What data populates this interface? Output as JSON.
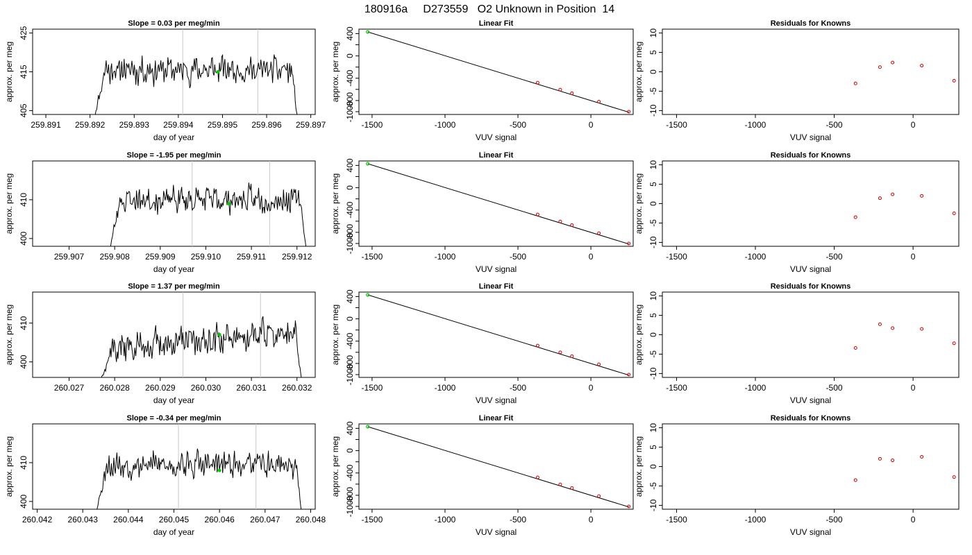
{
  "figure": {
    "title": "180916a     D273559   O2 Unknown in Position  14"
  },
  "colors": {
    "series_line": "#000000",
    "highlight_point": "#00cc00",
    "known_points": "#cc0000",
    "guide_lines": "#c8c8c8",
    "frame": "#000000"
  },
  "chart_data": [
    {
      "type": "line",
      "row": 0,
      "panel": "time_series",
      "title": "Slope =  0.03  per meg/min",
      "xlabel": "day of year",
      "ylabel": "approx. per meg",
      "xlim": [
        259.8907,
        259.8971
      ],
      "ylim": [
        404,
        426
      ],
      "xticks": [
        259.891,
        259.892,
        259.893,
        259.894,
        259.895,
        259.896,
        259.897
      ],
      "xtick_labels": [
        "259.891",
        "259.892",
        "259.893",
        "259.894",
        "259.895",
        "259.896",
        "259.897"
      ],
      "yticks": [
        405,
        415,
        425
      ],
      "ytick_labels": [
        "405",
        "415",
        "425"
      ],
      "vlines": [
        259.8941,
        259.8958
      ],
      "highlight_point": [
        259.8949,
        415
      ],
      "series": [
        {
          "x_start": 259.8921,
          "x_end": 259.8967,
          "baseline": 415.5,
          "amplitude": 1.4,
          "drift": 0.0,
          "tail_level": 403.0,
          "seed": 11
        }
      ]
    },
    {
      "type": "scatter",
      "row": 0,
      "panel": "linear_fit",
      "title": "Linear Fit",
      "xlabel": "VUV signal",
      "ylabel": "approx. per meg",
      "xlim": [
        -1590,
        290
      ],
      "ylim": [
        -1050,
        480
      ],
      "xticks": [
        -1500,
        -1000,
        -500,
        0
      ],
      "xtick_labels": [
        "-1500",
        "-1000",
        "-500",
        "0"
      ],
      "yticks": [
        400,
        200,
        0,
        -200,
        -400,
        -600,
        -800,
        -1000
      ],
      "ytick_labels": [
        "400",
        "",
        "0",
        "",
        "-400",
        "",
        "-800",
        "-1000"
      ],
      "fit_line": {
        "x": [
          -1530,
          260
        ],
        "y": [
          430,
          -1010
        ]
      },
      "known_points": {
        "x": [
          -365,
          -210,
          -130,
          55,
          260
        ],
        "y": [
          -480,
          -605,
          -670,
          -820,
          -1000
        ]
      },
      "highlight_point": [
        -1530,
        430
      ]
    },
    {
      "type": "scatter",
      "row": 0,
      "panel": "residuals",
      "title": "Residuals for Knowns",
      "xlabel": "VUV signal",
      "ylabel": "approx. per meg",
      "xlim": [
        -1590,
        290
      ],
      "ylim": [
        -11,
        11
      ],
      "xticks": [
        -1500,
        -1000,
        -500,
        0
      ],
      "xtick_labels": [
        "-1500",
        "-1000",
        "-500",
        "0"
      ],
      "yticks": [
        10,
        5,
        0,
        -5,
        -10
      ],
      "ytick_labels": [
        "10",
        "5",
        "0",
        "-5",
        "-10"
      ],
      "points": {
        "x": [
          -365,
          -210,
          -130,
          55,
          260
        ],
        "y": [
          -3.0,
          1.2,
          2.4,
          1.6,
          -2.3
        ]
      }
    },
    {
      "type": "line",
      "row": 1,
      "panel": "time_series",
      "title": "Slope =  -1.95  per meg/min",
      "xlabel": "day of year",
      "ylabel": "approx. per meg",
      "xlim": [
        259.9062,
        259.9124
      ],
      "ylim": [
        398,
        420
      ],
      "xticks": [
        259.907,
        259.908,
        259.909,
        259.91,
        259.911,
        259.912
      ],
      "xtick_labels": [
        "259.907",
        "259.908",
        "259.909",
        "259.910",
        "259.911",
        "259.912"
      ],
      "yticks": [
        400,
        410
      ],
      "ytick_labels": [
        "400",
        "410"
      ],
      "vlines": [
        259.9097,
        259.9114
      ],
      "highlight_point": [
        259.9105,
        409
      ],
      "series": [
        {
          "x_start": 259.9079,
          "x_end": 259.9122,
          "baseline": 410.0,
          "amplitude": 1.4,
          "drift": 0.0,
          "tail_level": 397.5,
          "seed": 23
        }
      ]
    },
    {
      "type": "scatter",
      "row": 1,
      "panel": "linear_fit",
      "title": "Linear Fit",
      "xlabel": "VUV signal",
      "ylabel": "approx. per meg",
      "xlim": [
        -1590,
        290
      ],
      "ylim": [
        -1050,
        480
      ],
      "xticks": [
        -1500,
        -1000,
        -500,
        0
      ],
      "xtick_labels": [
        "-1500",
        "-1000",
        "-500",
        "0"
      ],
      "yticks": [
        400,
        200,
        0,
        -200,
        -400,
        -600,
        -800,
        -1000
      ],
      "ytick_labels": [
        "400",
        "",
        "0",
        "",
        "-400",
        "",
        "-800",
        "-1000"
      ],
      "fit_line": {
        "x": [
          -1530,
          260
        ],
        "y": [
          430,
          -1010
        ]
      },
      "known_points": {
        "x": [
          -365,
          -210,
          -130,
          55,
          260
        ],
        "y": [
          -480,
          -605,
          -670,
          -815,
          -1000
        ]
      },
      "highlight_point": [
        -1530,
        430
      ]
    },
    {
      "type": "scatter",
      "row": 1,
      "panel": "residuals",
      "title": "Residuals for Knowns",
      "xlabel": "VUV signal",
      "ylabel": "approx. per meg",
      "xlim": [
        -1590,
        290
      ],
      "ylim": [
        -11,
        11
      ],
      "xticks": [
        -1500,
        -1000,
        -500,
        0
      ],
      "xtick_labels": [
        "-1500",
        "-1000",
        "-500",
        "0"
      ],
      "yticks": [
        10,
        5,
        0,
        -5,
        -10
      ],
      "ytick_labels": [
        "10",
        "5",
        "0",
        "-5",
        "-10"
      ],
      "points": {
        "x": [
          -365,
          -210,
          -130,
          55,
          260
        ],
        "y": [
          -3.5,
          1.4,
          2.4,
          2.0,
          -2.5
        ]
      }
    },
    {
      "type": "line",
      "row": 2,
      "panel": "time_series",
      "title": "Slope =  1.37  per meg/min",
      "xlabel": "day of year",
      "ylabel": "approx. per meg",
      "xlim": [
        260.0262,
        260.0324
      ],
      "ylim": [
        396,
        418
      ],
      "xticks": [
        260.027,
        260.028,
        260.029,
        260.03,
        260.031,
        260.032
      ],
      "xtick_labels": [
        "260.027",
        "260.028",
        "260.029",
        "260.030",
        "260.031",
        "260.032"
      ],
      "yticks": [
        400,
        410
      ],
      "ytick_labels": [
        "400",
        "410"
      ],
      "vlines": [
        260.0295,
        260.0312
      ],
      "highlight_point": [
        260.0303,
        407
      ],
      "series": [
        {
          "x_start": 260.0277,
          "x_end": 260.0321,
          "baseline": 405.5,
          "amplitude": 1.6,
          "drift": 4.5,
          "tail_level": 395.5,
          "seed": 37
        }
      ]
    },
    {
      "type": "scatter",
      "row": 2,
      "panel": "linear_fit",
      "title": "Linear Fit",
      "xlabel": "VUV signal",
      "ylabel": "approx. per meg",
      "xlim": [
        -1590,
        290
      ],
      "ylim": [
        -1050,
        480
      ],
      "xticks": [
        -1500,
        -1000,
        -500,
        0
      ],
      "xtick_labels": [
        "-1500",
        "-1000",
        "-500",
        "0"
      ],
      "yticks": [
        400,
        200,
        0,
        -200,
        -400,
        -600,
        -800,
        -1000
      ],
      "ytick_labels": [
        "400",
        "",
        "0",
        "",
        "-400",
        "",
        "-800",
        "-1000"
      ],
      "fit_line": {
        "x": [
          -1530,
          260
        ],
        "y": [
          430,
          -1010
        ]
      },
      "known_points": {
        "x": [
          -365,
          -210,
          -130,
          55,
          260
        ],
        "y": [
          -480,
          -600,
          -670,
          -815,
          -1000
        ]
      },
      "highlight_point": [
        -1530,
        430
      ]
    },
    {
      "type": "scatter",
      "row": 2,
      "panel": "residuals",
      "title": "Residuals for Knowns",
      "xlabel": "VUV signal",
      "ylabel": "approx. per meg",
      "xlim": [
        -1590,
        290
      ],
      "ylim": [
        -11,
        11
      ],
      "xticks": [
        -1500,
        -1000,
        -500,
        0
      ],
      "xtick_labels": [
        "-1500",
        "-1000",
        "-500",
        "0"
      ],
      "yticks": [
        10,
        5,
        0,
        -5,
        -10
      ],
      "ytick_labels": [
        "10",
        "5",
        "0",
        "-5",
        "-10"
      ],
      "points": {
        "x": [
          -365,
          -210,
          -130,
          55,
          260
        ],
        "y": [
          -3.4,
          2.7,
          1.7,
          1.5,
          -2.2
        ]
      }
    },
    {
      "type": "line",
      "row": 3,
      "panel": "time_series",
      "title": "Slope =  -0.34  per meg/min",
      "xlabel": "day of year",
      "ylabel": "approx. per meg",
      "xlim": [
        260.0419,
        260.0481
      ],
      "ylim": [
        398,
        420
      ],
      "xticks": [
        260.042,
        260.043,
        260.044,
        260.045,
        260.046,
        260.047,
        260.048
      ],
      "xtick_labels": [
        "260.042",
        "260.043",
        "260.044",
        "260.045",
        "260.046",
        "260.047",
        "260.048"
      ],
      "yticks": [
        400,
        410
      ],
      "ytick_labels": [
        "400",
        "410"
      ],
      "vlines": [
        260.0451,
        260.0468
      ],
      "highlight_point": [
        260.046,
        408
      ],
      "series": [
        {
          "x_start": 260.0433,
          "x_end": 260.0478,
          "baseline": 409.5,
          "amplitude": 1.4,
          "drift": 0.0,
          "tail_level": 397.5,
          "seed": 53
        }
      ]
    },
    {
      "type": "scatter",
      "row": 3,
      "panel": "linear_fit",
      "title": "Linear Fit",
      "xlabel": "VUV signal",
      "ylabel": "approx. per meg",
      "xlim": [
        -1590,
        290
      ],
      "ylim": [
        -1050,
        480
      ],
      "xticks": [
        -1500,
        -1000,
        -500,
        0
      ],
      "xtick_labels": [
        "-1500",
        "-1000",
        "-500",
        "0"
      ],
      "yticks": [
        400,
        200,
        0,
        -200,
        -400,
        -600,
        -800,
        -1000
      ],
      "ytick_labels": [
        "400",
        "",
        "0",
        "",
        "-400",
        "",
        "-800",
        "-1000"
      ],
      "fit_line": {
        "x": [
          -1530,
          260
        ],
        "y": [
          430,
          -1010
        ]
      },
      "known_points": {
        "x": [
          -365,
          -210,
          -130,
          55,
          260
        ],
        "y": [
          -480,
          -605,
          -670,
          -815,
          -1000
        ]
      },
      "highlight_point": [
        -1530,
        430
      ]
    },
    {
      "type": "scatter",
      "row": 3,
      "panel": "residuals",
      "title": "Residuals for Knowns",
      "xlabel": "VUV signal",
      "ylabel": "approx. per meg",
      "xlim": [
        -1590,
        290
      ],
      "ylim": [
        -11,
        11
      ],
      "xticks": [
        -1500,
        -1000,
        -500,
        0
      ],
      "xtick_labels": [
        "-1500",
        "-1000",
        "-500",
        "0"
      ],
      "yticks": [
        10,
        5,
        0,
        -5,
        -10
      ],
      "ytick_labels": [
        "10",
        "5",
        "0",
        "-5",
        "-10"
      ],
      "points": {
        "x": [
          -365,
          -210,
          -130,
          55,
          260
        ],
        "y": [
          -3.5,
          2.0,
          1.6,
          2.5,
          -2.7
        ]
      }
    }
  ]
}
